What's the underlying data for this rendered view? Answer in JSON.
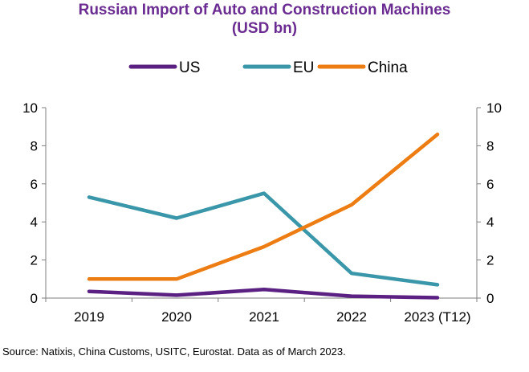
{
  "chart_data": {
    "type": "line",
    "title": "Russian Import of Auto and Construction Machines",
    "subtitle": "(USD bn)",
    "categories": [
      "2019",
      "2020",
      "2021",
      "2022",
      "2023 (T12)"
    ],
    "series": [
      {
        "name": "US",
        "color": "#5b2182",
        "values": [
          0.35,
          0.15,
          0.45,
          0.1,
          0.02
        ]
      },
      {
        "name": "EU",
        "color": "#3a97a9",
        "values": [
          5.3,
          4.2,
          5.5,
          1.3,
          0.7
        ]
      },
      {
        "name": "China",
        "color": "#ed7d13",
        "values": [
          1.0,
          1.0,
          2.7,
          4.9,
          8.6
        ]
      }
    ],
    "ylim": [
      0,
      10
    ],
    "yticks": [
      "0",
      "2",
      "4",
      "6",
      "8",
      "10"
    ],
    "legend_position": "top",
    "grid": false
  },
  "source": "Source: Natixis, China Customs, USITC, Eurostat. Data as of March 2023."
}
